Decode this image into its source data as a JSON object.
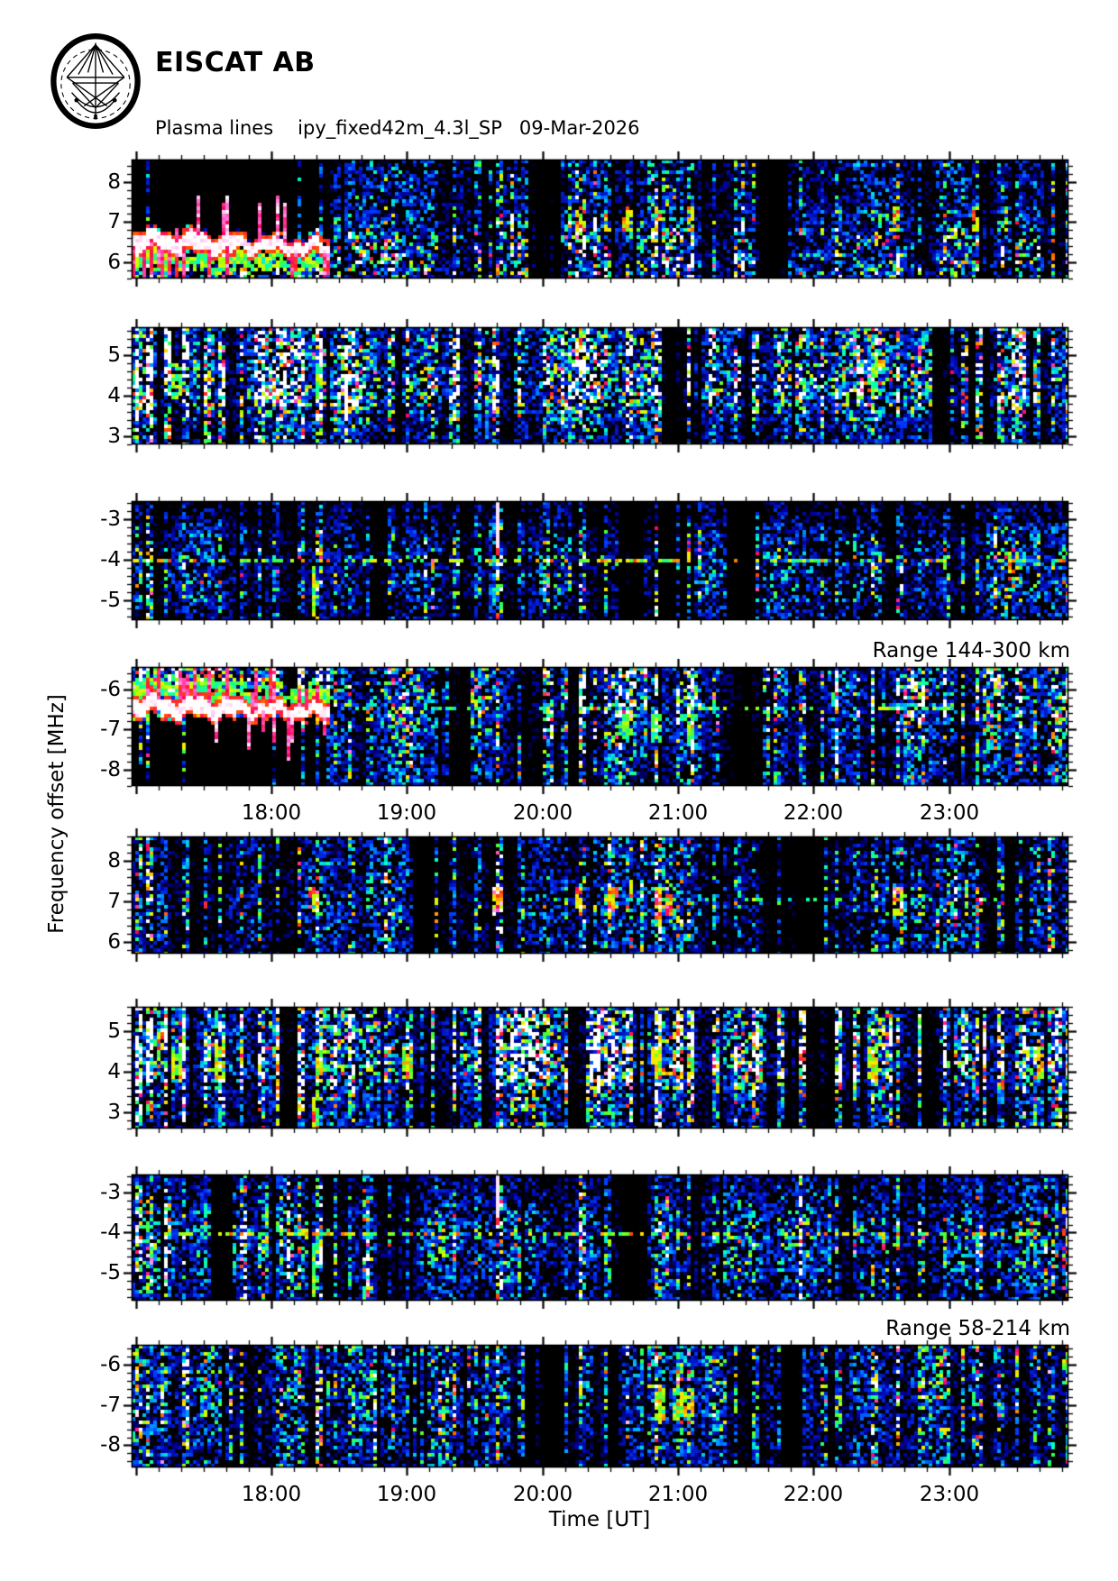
{
  "header": {
    "logo": "eiscat-logo",
    "title": "EISCAT AB",
    "plot_type": "Plasma lines",
    "experiment": "ipy_fixed42m_4.3l_SP",
    "date": "09-Mar-2026"
  },
  "axes": {
    "ylabel": "Frequency offset [MHz]",
    "xlabel": "Time [UT]",
    "time_tick_labels": [
      "18:00",
      "19:00",
      "20:00",
      "21:00",
      "22:00",
      "23:00"
    ],
    "time_tick_hours": [
      18,
      19,
      20,
      21,
      22,
      23
    ]
  },
  "annotations": {
    "range_upper": "Range 144-300 km",
    "range_lower": "Range 58-214 km"
  },
  "palette": {
    "background": "#ffffff",
    "plot_bg": "#000000",
    "ink": "#000000",
    "colormap_stops": [
      [
        0.0,
        "#000000"
      ],
      [
        0.06,
        "#000028"
      ],
      [
        0.12,
        "#0000a0"
      ],
      [
        0.3,
        "#003cff"
      ],
      [
        0.42,
        "#00aaff"
      ],
      [
        0.52,
        "#00ffc8"
      ],
      [
        0.62,
        "#3cff3c"
      ],
      [
        0.7,
        "#c8ff00"
      ],
      [
        0.78,
        "#ffe600"
      ],
      [
        0.85,
        "#ff5000"
      ],
      [
        0.9,
        "#ff005a"
      ],
      [
        0.95,
        "#ff78dc"
      ],
      [
        0.975,
        "#ffffff"
      ],
      [
        1.0,
        "#ffffff"
      ]
    ]
  },
  "chart_data": {
    "type": "heatmap",
    "description": "EISCAT plasma line spectrograms: 8 stacked time-frequency panels, jet-style colour scale on black, upper four panels for range 144-300 km, lower four for range 58-214 km",
    "x_axis": {
      "label": "Time [UT]",
      "tmin": 16.97,
      "tmax": 23.88,
      "minor_tick_minutes": 10,
      "hour_ticks": [
        18,
        19,
        20,
        21,
        22,
        23
      ]
    },
    "y_axis": {
      "label": "Frequency offset [MHz]",
      "minor_tick_mhz": 0.2
    },
    "groups": [
      {
        "range_label": "Range 144-300 km",
        "panels": [
          0,
          1,
          2,
          3
        ]
      },
      {
        "range_label": "Range 58-214 km",
        "panels": [
          4,
          5,
          6,
          7
        ]
      }
    ],
    "events": [
      [
        17.0,
        2.4
      ],
      [
        17.07,
        2.9
      ],
      [
        17.2,
        1.7
      ],
      [
        17.33,
        2.3
      ],
      [
        17.5,
        1.5
      ],
      [
        17.62,
        1.8
      ],
      [
        17.77,
        1.6
      ],
      [
        17.9,
        1.9
      ],
      [
        18.03,
        2.1
      ],
      [
        18.2,
        2.4
      ],
      [
        18.32,
        3.1
      ],
      [
        18.45,
        1.6
      ],
      [
        18.57,
        1.9
      ],
      [
        18.7,
        1.5
      ],
      [
        18.85,
        1.7
      ],
      [
        19.0,
        1.8
      ],
      [
        19.17,
        1.5
      ],
      [
        19.35,
        2.0
      ],
      [
        19.5,
        1.5
      ],
      [
        19.66,
        2.9
      ],
      [
        19.82,
        1.6
      ],
      [
        20.0,
        1.8
      ],
      [
        20.15,
        1.5
      ],
      [
        20.28,
        2.6
      ],
      [
        20.45,
        1.7
      ],
      [
        20.62,
        2.1
      ],
      [
        20.83,
        2.9
      ],
      [
        21.0,
        1.8
      ],
      [
        21.07,
        2.3
      ],
      [
        21.25,
        1.6
      ],
      [
        21.4,
        1.8
      ],
      [
        21.55,
        1.9
      ],
      [
        21.72,
        1.5
      ],
      [
        21.88,
        1.7
      ],
      [
        22.05,
        1.8
      ],
      [
        22.17,
        1.6
      ],
      [
        22.3,
        1.5
      ],
      [
        22.42,
        2.2
      ],
      [
        22.62,
        2.7
      ],
      [
        22.78,
        1.6
      ],
      [
        22.95,
        1.8
      ],
      [
        23.1,
        1.7
      ],
      [
        23.2,
        2.2
      ],
      [
        23.35,
        1.7
      ],
      [
        23.5,
        1.8
      ],
      [
        23.63,
        1.6
      ],
      [
        23.75,
        1.9
      ],
      [
        23.85,
        2.3
      ]
    ],
    "panels": [
      {
        "name": "upshifted-high-band-range1",
        "ylim": [
          5.6,
          8.55
        ],
        "yticks": [
          6,
          7,
          8
        ],
        "seed": 101,
        "expo": 2.4,
        "base": 1.05,
        "eventMult": 0.9,
        "profile": [
          [
            5.6,
            1.0
          ],
          [
            6.6,
            0.95
          ],
          [
            7.1,
            0.62
          ],
          [
            7.8,
            0.48
          ],
          [
            8.55,
            0.52
          ]
        ],
        "gaps": [
          [
            19.9,
            20.03
          ],
          [
            21.6,
            21.78
          ]
        ],
        "trace": {
          "t0": 16.97,
          "t1": 18.42,
          "f0": 6.55,
          "f1": 6.35,
          "dark": "above"
        },
        "hotbands": [
          {
            "f": 7.05,
            "hw": 0.28,
            "strength": 0.85,
            "events": [
              20.28,
              20.62,
              20.83,
              21.07,
              22.62,
              23.2,
              23.42
            ]
          }
        ]
      },
      {
        "name": "upshifted-low-band-range1",
        "ylim": [
          2.8,
          5.7
        ],
        "yticks": [
          3,
          4,
          5
        ],
        "seed": 102,
        "expo": 1.9,
        "base": 1.18,
        "eventMult": 1.0,
        "profile": [
          [
            2.8,
            0.5
          ],
          [
            3.2,
            0.46
          ],
          [
            3.6,
            0.7
          ],
          [
            3.9,
            1.1
          ],
          [
            4.5,
            1.2
          ],
          [
            4.9,
            0.95
          ],
          [
            5.4,
            0.85
          ],
          [
            5.7,
            0.8
          ]
        ],
        "tprofile": [
          [
            16.97,
            1.35
          ],
          [
            18.6,
            1.12
          ],
          [
            19.1,
            1.0
          ],
          [
            23.88,
            1.0
          ]
        ],
        "gaps": [
          [
            20.9,
            21.02
          ],
          [
            22.88,
            22.98
          ]
        ],
        "hotbands": [
          {
            "f": 4.4,
            "hw": 0.4,
            "strength": 0.72,
            "events": [
              17.3,
              18.32,
              22.42
            ]
          }
        ]
      },
      {
        "name": "downshifted-low-band-range1",
        "ylim": [
          -5.5,
          -2.55
        ],
        "yticks": [
          -5,
          -4,
          -3
        ],
        "seed": 103,
        "expo": 2.2,
        "base": 0.95,
        "eventMult": 0.9,
        "profile": [
          [
            -5.5,
            0.4
          ],
          [
            -5.0,
            0.62
          ],
          [
            -4.6,
            0.76
          ],
          [
            -3.9,
            0.8
          ],
          [
            -3.4,
            0.6
          ],
          [
            -3.0,
            0.32
          ],
          [
            -2.55,
            0.26
          ]
        ],
        "gaps": [
          [
            20.55,
            20.72
          ],
          [
            21.35,
            21.55
          ]
        ],
        "hlines": [
          {
            "f": -4.02,
            "strength": 0.72,
            "duty": 0.4,
            "t0": 16.97
          }
        ],
        "streak": {
          "t": 19.66,
          "f_to": -3.85
        },
        "drips": [
          {
            "t": 18.3,
            "f0": -4.2,
            "f1": -5.4,
            "v": 0.68
          }
        ]
      },
      {
        "name": "downshifted-high-band-range1",
        "ylim": [
          -8.4,
          -5.45
        ],
        "yticks": [
          -8,
          -7,
          -6
        ],
        "seed": 104,
        "expo": 2.0,
        "base": 1.08,
        "eventMult": 1.0,
        "profile": [
          [
            -8.4,
            0.5
          ],
          [
            -7.6,
            0.6
          ],
          [
            -7.0,
            0.75
          ],
          [
            -6.4,
            0.95
          ],
          [
            -5.9,
            1.0
          ],
          [
            -5.45,
            0.95
          ]
        ],
        "tprofile": [
          [
            16.97,
            1.15
          ],
          [
            18.5,
            1.0
          ],
          [
            23.88,
            1.0
          ]
        ],
        "gaps": [
          [
            19.3,
            19.45
          ],
          [
            21.4,
            21.6
          ]
        ],
        "trace": {
          "t0": 16.97,
          "t1": 18.42,
          "f0": -6.4,
          "f1": -6.55,
          "dark": "below"
        },
        "hlines": [
          {
            "f": -6.52,
            "strength": 0.62,
            "duty": 0.28,
            "t0": 18.45
          }
        ],
        "hotbands": [
          {
            "f": -7.0,
            "hw": 0.3,
            "strength": 0.7,
            "events": [
              20.62,
              20.83,
              21.07
            ]
          }
        ]
      },
      {
        "name": "upshifted-high-band-range2",
        "ylim": [
          5.7,
          8.6
        ],
        "yticks": [
          6,
          7,
          8
        ],
        "seed": 105,
        "expo": 2.3,
        "base": 0.95,
        "eventMult": 1.0,
        "profile": [
          [
            5.7,
            0.55
          ],
          [
            6.5,
            0.62
          ],
          [
            7.0,
            0.72
          ],
          [
            7.5,
            0.55
          ],
          [
            8.6,
            0.5
          ]
        ],
        "gaps": [
          [
            19.05,
            19.18
          ],
          [
            21.9,
            22.05
          ]
        ],
        "hlines": [
          {
            "f": 7.02,
            "strength": 0.55,
            "duty": 0.18,
            "t0": 19.8
          }
        ],
        "hotbands": [
          {
            "f": 7.0,
            "hw": 0.3,
            "strength": 0.95,
            "events": [
              18.3,
              19.66,
              20.28,
              20.52,
              20.83,
              20.93,
              22.6,
              23.2
            ]
          }
        ]
      },
      {
        "name": "upshifted-low-band-range2",
        "ylim": [
          2.6,
          5.6
        ],
        "yticks": [
          3,
          4,
          5
        ],
        "seed": 106,
        "expo": 1.8,
        "base": 1.25,
        "eventMult": 1.0,
        "profile": [
          [
            2.6,
            0.5
          ],
          [
            3.0,
            0.45
          ],
          [
            3.5,
            0.62
          ],
          [
            3.9,
            1.15
          ],
          [
            4.6,
            1.25
          ],
          [
            5.0,
            1.0
          ],
          [
            5.6,
            0.9
          ]
        ],
        "tprofile": [
          [
            16.97,
            1.2
          ],
          [
            18.6,
            1.05
          ],
          [
            19.5,
            1.0
          ],
          [
            23.88,
            1.05
          ]
        ],
        "gaps": [
          [
            18.07,
            18.18
          ],
          [
            20.18,
            20.3
          ],
          [
            21.95,
            22.12
          ]
        ],
        "hotbands": [
          {
            "f": 4.25,
            "hw": 0.35,
            "strength": 0.8,
            "events": [
              17.3,
              17.62,
              18.32,
              19.0,
              20.83,
              21.07,
              22.42,
              23.67
            ]
          }
        ],
        "drips": [
          {
            "t": 18.3,
            "f0": 3.35,
            "f1": 2.65,
            "v": 0.78
          },
          {
            "t": 18.34,
            "f0": 3.1,
            "f1": 2.7,
            "v": 0.6
          }
        ]
      },
      {
        "name": "downshifted-low-band-range2",
        "ylim": [
          -5.7,
          -2.55
        ],
        "yticks": [
          -5,
          -4,
          -3
        ],
        "seed": 107,
        "expo": 2.1,
        "base": 1.0,
        "eventMult": 0.95,
        "profile": [
          [
            -5.7,
            0.45
          ],
          [
            -5.0,
            0.66
          ],
          [
            -4.4,
            0.8
          ],
          [
            -3.8,
            0.76
          ],
          [
            -3.3,
            0.55
          ],
          [
            -2.55,
            0.3
          ]
        ],
        "gaps": [
          [
            17.55,
            17.68
          ],
          [
            20.6,
            20.75
          ]
        ],
        "hlines": [
          {
            "f": -4.02,
            "strength": 0.72,
            "duty": 0.4,
            "t0": 16.97
          }
        ],
        "streak": {
          "t": 19.66,
          "f_to": -3.8
        },
        "drips": [
          {
            "t": 18.3,
            "f0": -4.3,
            "f1": -5.6,
            "v": 0.62
          }
        ]
      },
      {
        "name": "downshifted-high-band-range2",
        "ylim": [
          -8.55,
          -5.5
        ],
        "yticks": [
          -8,
          -7,
          -6
        ],
        "seed": 108,
        "expo": 2.1,
        "base": 1.0,
        "eventMult": 0.95,
        "profile": [
          [
            -8.55,
            0.5
          ],
          [
            -7.8,
            0.6
          ],
          [
            -7.2,
            0.7
          ],
          [
            -6.5,
            0.8
          ],
          [
            -5.9,
            0.76
          ],
          [
            -5.5,
            0.7
          ]
        ],
        "gaps": [
          [
            20.0,
            20.14
          ],
          [
            21.75,
            21.9
          ]
        ],
        "hotbands": [
          {
            "f": -6.95,
            "hw": 0.35,
            "strength": 0.8,
            "events": [
              20.85,
              21.0,
              21.07
            ]
          },
          {
            "f": -6.1,
            "hw": 0.3,
            "strength": 0.75,
            "events": [
              23.85
            ]
          }
        ]
      }
    ]
  }
}
